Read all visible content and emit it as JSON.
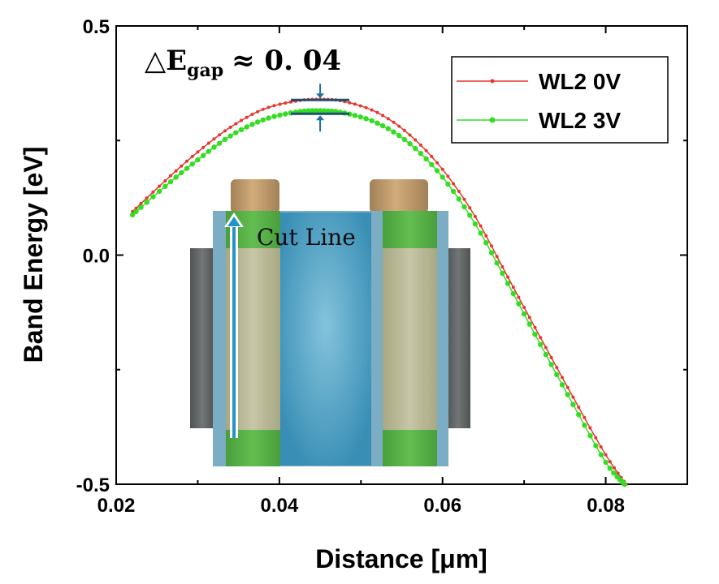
{
  "chart_data": {
    "type": "line",
    "xlabel": "Distance [μm]",
    "ylabel": "Band Energy [eV]",
    "xlim": [
      0.02,
      0.09
    ],
    "ylim": [
      -0.5,
      0.5
    ],
    "xticks": [
      0.02,
      0.04,
      0.06,
      0.08
    ],
    "xtick_labels": [
      "0.02",
      "0.04",
      "0.06",
      "0.08"
    ],
    "yticks": [
      -0.5,
      0.0,
      0.5
    ],
    "ytick_labels": [
      "-0.5",
      "0.0",
      "0.5"
    ],
    "legend_position": "top-right",
    "grid": false,
    "series": [
      {
        "name": "WL2 0V",
        "color": "#e8352e",
        "marker_size": 2,
        "x": [
          0.022,
          0.026,
          0.03,
          0.034,
          0.038,
          0.042,
          0.045,
          0.048,
          0.052,
          0.056,
          0.06,
          0.064,
          0.068,
          0.072,
          0.076,
          0.08,
          0.0825
        ],
        "y": [
          0.095,
          0.162,
          0.225,
          0.279,
          0.318,
          0.336,
          0.34,
          0.335,
          0.311,
          0.262,
          0.187,
          0.084,
          -0.048,
          -0.18,
          -0.31,
          -0.436,
          -0.5
        ]
      },
      {
        "name": "WL2 3V",
        "color": "#33dd22",
        "marker_size": 3.2,
        "x": [
          0.022,
          0.026,
          0.03,
          0.034,
          0.038,
          0.042,
          0.045,
          0.048,
          0.052,
          0.056,
          0.06,
          0.064,
          0.068,
          0.072,
          0.076,
          0.08,
          0.0823
        ],
        "y": [
          0.088,
          0.15,
          0.208,
          0.26,
          0.295,
          0.312,
          0.315,
          0.31,
          0.288,
          0.243,
          0.17,
          0.068,
          -0.062,
          -0.195,
          -0.326,
          -0.452,
          -0.5
        ]
      }
    ],
    "annotations": {
      "gap_prefix": "△E",
      "gap_subscript": "gap",
      "gap_value": "≈ 0. 04",
      "gap_x": 0.045,
      "gap_top": 0.335,
      "gap_bottom": 0.312
    }
  },
  "inset": {
    "label": "Cut Line",
    "colors": {
      "body": "#3a95bd",
      "body_light": "#7ec0da",
      "oxide": "#74a9c1",
      "gate": "#b7b592",
      "contact": "#48a83a",
      "cap": "#b89264",
      "electrode": "#565a5a",
      "arrow": "#1a8ec5"
    }
  }
}
